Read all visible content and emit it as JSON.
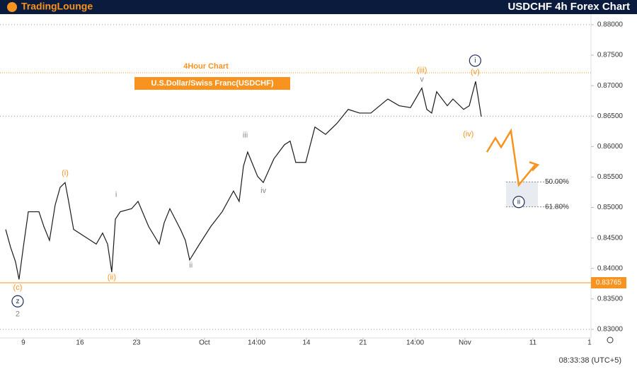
{
  "chart_data": {
    "type": "line",
    "title": "USDCHF 4h Forex Chart",
    "brand": "TradingLounge",
    "subtitle": "4Hour Chart",
    "instrument": "U.S.Dollar/Swiss Franc(USDCHF)",
    "clock": "08:33:38 (UTC+5)",
    "xlim": [
      -2.06,
      50.13
    ],
    "ylim": [
      0.8286,
      0.8815
    ],
    "xticks": [
      {
        "value": 0,
        "label": "9"
      },
      {
        "value": 5,
        "label": "16"
      },
      {
        "value": 10,
        "label": "23"
      },
      {
        "value": 16,
        "label": "Oct"
      },
      {
        "value": 20.6,
        "label": "14:00"
      },
      {
        "value": 25,
        "label": "14"
      },
      {
        "value": 30,
        "label": "21"
      },
      {
        "value": 34.6,
        "label": "14:00"
      },
      {
        "value": 39,
        "label": "Nov"
      },
      {
        "value": 45,
        "label": "11"
      },
      {
        "value": 50,
        "label": "1"
      }
    ],
    "yticks": [
      {
        "value": 0.83,
        "label": "0.83000"
      },
      {
        "value": 0.835,
        "label": "0.83500"
      },
      {
        "value": 0.84,
        "label": "0.84000"
      },
      {
        "value": 0.845,
        "label": "0.84500"
      },
      {
        "value": 0.85,
        "label": "0.85000"
      },
      {
        "value": 0.855,
        "label": "0.85500"
      },
      {
        "value": 0.86,
        "label": "0.86000"
      },
      {
        "value": 0.865,
        "label": "0.86500"
      },
      {
        "value": 0.87,
        "label": "0.87000"
      },
      {
        "value": 0.875,
        "label": "0.87500"
      },
      {
        "value": 0.88,
        "label": "0.88000"
      }
    ],
    "x": [
      -1.56,
      -1.13,
      -0.69,
      -0.38,
      0,
      0.44,
      1.38,
      1.81,
      2.31,
      2.81,
      3.25,
      3.69,
      4.0,
      4.44,
      5.44,
      6.44,
      7.0,
      7.44,
      7.81,
      8.13,
      8.56,
      9.56,
      10.13,
      11.06,
      12.0,
      12.44,
      12.94,
      13.88,
      14.31,
      14.69,
      15.56,
      16.56,
      17.56,
      18.56,
      19.06,
      19.44,
      19.81,
      20.69,
      21.19,
      22.13,
      23.06,
      23.56,
      24.06,
      24.94,
      25.75,
      26.69,
      27.69,
      28.69,
      29.69,
      30.69,
      32.19,
      33.19,
      34.19,
      35.19,
      35.63,
      36.06,
      36.5,
      37.44,
      37.94,
      38.88,
      39.38,
      39.94,
      40.44
    ],
    "values": [
      0.8464,
      0.8435,
      0.8411,
      0.8382,
      0.8435,
      0.8493,
      0.8493,
      0.8469,
      0.8446,
      0.8504,
      0.8533,
      0.8541,
      0.851,
      0.8464,
      0.8452,
      0.844,
      0.8458,
      0.844,
      0.8394,
      0.8481,
      0.8493,
      0.8498,
      0.851,
      0.8469,
      0.844,
      0.8475,
      0.8498,
      0.8464,
      0.8446,
      0.8414,
      0.844,
      0.8469,
      0.8493,
      0.8527,
      0.851,
      0.8568,
      0.8591,
      0.8551,
      0.8541,
      0.858,
      0.8603,
      0.8609,
      0.8574,
      0.8574,
      0.8632,
      0.862,
      0.8638,
      0.8661,
      0.8655,
      0.8655,
      0.8678,
      0.8667,
      0.8664,
      0.8696,
      0.8661,
      0.8655,
      0.869,
      0.8667,
      0.8678,
      0.8661,
      0.8667,
      0.8707,
      0.8649
    ],
    "color": "#1a1a1a",
    "projection": {
      "x": [
        40.94,
        41.69,
        42.19,
        43.06,
        43.75,
        45.25
      ],
      "values": [
        0.8591,
        0.8614,
        0.8599,
        0.8626,
        0.8537,
        0.8571
      ],
      "color": "#f7931e"
    },
    "support": 0.83765,
    "support_color": "#f7931e",
    "resistance": 0.8721,
    "levels": [
      0.865,
      0.88,
      0.83
    ],
    "fib": [
      {
        "label": "50.00%",
        "price": 0.8542
      },
      {
        "label": "61.80%",
        "price": 0.8501
      }
    ],
    "waves": [
      {
        "text": "(i)",
        "x": 3.69,
        "y": 0.8556,
        "color": "#f7931e"
      },
      {
        "text": "i",
        "x": 8.2,
        "y": 0.8521,
        "color": "#888888"
      },
      {
        "text": "(ii)",
        "x": 7.81,
        "y": 0.8385,
        "color": "#f7931e"
      },
      {
        "text": "ii",
        "x": 14.8,
        "y": 0.8405,
        "color": "#888888"
      },
      {
        "text": "iii",
        "x": 19.6,
        "y": 0.8618,
        "color": "#888888"
      },
      {
        "text": "iv",
        "x": 21.2,
        "y": 0.8527,
        "color": "#888888"
      },
      {
        "text": "(iii)",
        "x": 35.2,
        "y": 0.8725,
        "color": "#f7931e"
      },
      {
        "text": "v",
        "x": 35.2,
        "y": 0.871,
        "color": "#888888"
      },
      {
        "text": "(iv)",
        "x": 39.3,
        "y": 0.862,
        "color": "#f7931e"
      },
      {
        "text": "(v)",
        "x": 39.9,
        "y": 0.8722,
        "color": "#f7931e"
      },
      {
        "text": "(c)",
        "x": -0.5,
        "y": 0.8368,
        "color": "#f7931e"
      },
      {
        "text": "2",
        "x": -0.5,
        "y": 0.8325,
        "color": "#888888"
      }
    ],
    "circled": [
      {
        "text": "i",
        "x": 39.9,
        "y": 0.8741,
        "color": "#1c2b5a"
      },
      {
        "text": "ii",
        "x": 43.75,
        "y": 0.8509,
        "color": "#1c2b5a"
      },
      {
        "text": "z",
        "x": -0.5,
        "y": 0.8346,
        "color": "#1c2b5a"
      }
    ]
  }
}
